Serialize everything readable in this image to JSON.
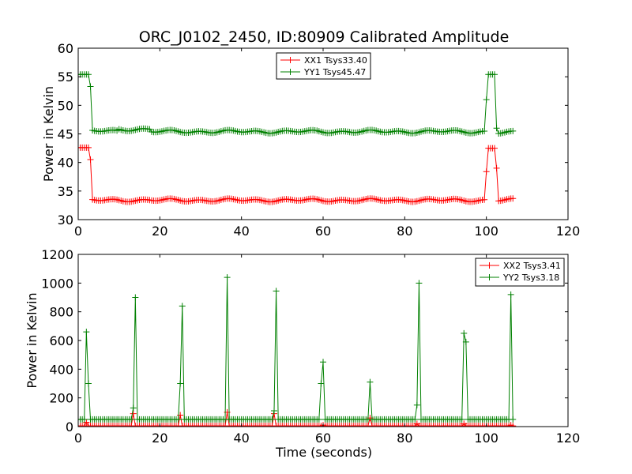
{
  "figure": {
    "title": "ORC_J0102_2450, ID:80909 Calibrated Amplitude",
    "xlabel": "Time (seconds)"
  },
  "colors": {
    "xx": "#ff0000",
    "yy": "#008000",
    "axes": "#000000"
  },
  "chart_data": [
    {
      "type": "line",
      "ylabel": "Power in Kelvin",
      "xlim": [
        0,
        120
      ],
      "ylim": [
        30,
        60
      ],
      "xticks": [
        0,
        20,
        40,
        60,
        80,
        100,
        120
      ],
      "yticks": [
        30,
        35,
        40,
        45,
        50,
        55,
        60
      ],
      "legend_position": "top-center",
      "x_step": 0.5,
      "series": [
        {
          "name": "XX1 Tsys33.40",
          "color": "#ff0000",
          "segments": [
            {
              "x0": 0,
              "x1": 2.5,
              "value": 42.6
            },
            {
              "x0": 3.0,
              "x1": 3.0,
              "value": 40.5
            },
            {
              "x0": 3.5,
              "x1": 99.5,
              "value": 33.4
            },
            {
              "x0": 100.0,
              "x1": 100.0,
              "value": 38.4
            },
            {
              "x0": 100.5,
              "x1": 102.0,
              "value": 42.5
            },
            {
              "x0": 102.5,
              "x1": 102.5,
              "value": 39.0
            },
            {
              "x0": 103.0,
              "x1": 106.5,
              "value": 33.4
            }
          ]
        },
        {
          "name": "YY1 Tsys45.47",
          "color": "#008000",
          "segments": [
            {
              "x0": 0,
              "x1": 2.5,
              "value": 55.4
            },
            {
              "x0": 3.0,
              "x1": 3.0,
              "value": 53.3
            },
            {
              "x0": 3.5,
              "x1": 9.5,
              "value": 45.5
            },
            {
              "x0": 10.0,
              "x1": 17.5,
              "value": 45.8
            },
            {
              "x0": 18.0,
              "x1": 99.5,
              "value": 45.4
            },
            {
              "x0": 100.0,
              "x1": 100.0,
              "value": 51.0
            },
            {
              "x0": 100.5,
              "x1": 102.0,
              "value": 55.4
            },
            {
              "x0": 102.5,
              "x1": 102.5,
              "value": 46.0
            },
            {
              "x0": 103.0,
              "x1": 106.5,
              "value": 45.2
            }
          ]
        }
      ]
    },
    {
      "type": "line",
      "ylabel": "Power in Kelvin",
      "xlabel": "Time (seconds)",
      "xlim": [
        0,
        120
      ],
      "ylim": [
        0,
        1200
      ],
      "xticks": [
        0,
        20,
        40,
        60,
        80,
        100,
        120
      ],
      "yticks": [
        0,
        200,
        400,
        600,
        800,
        1000,
        1200
      ],
      "legend_position": "top-right",
      "x_step": 0.5,
      "series": [
        {
          "name": "XX2 Tsys3.41",
          "color": "#ff0000",
          "baseline": 5,
          "spikes": [
            {
              "x": 2.0,
              "value": 30
            },
            {
              "x": 13.5,
              "value": 90
            },
            {
              "x": 25.0,
              "value": 80
            },
            {
              "x": 36.5,
              "value": 100
            },
            {
              "x": 48.0,
              "value": 90
            },
            {
              "x": 60.0,
              "value": 10
            },
            {
              "x": 71.5,
              "value": 60
            },
            {
              "x": 83.0,
              "value": 20
            },
            {
              "x": 94.5,
              "value": 20
            },
            {
              "x": 106.0,
              "value": 10
            }
          ]
        },
        {
          "name": "YY2 Tsys3.18",
          "color": "#008000",
          "baseline": 50,
          "spikes": [
            {
              "x": 2.0,
              "value": 660
            },
            {
              "x": 2.5,
              "value": 300
            },
            {
              "x": 13.5,
              "value": 130
            },
            {
              "x": 14.0,
              "value": 900
            },
            {
              "x": 25.0,
              "value": 300
            },
            {
              "x": 25.5,
              "value": 840
            },
            {
              "x": 36.5,
              "value": 1040
            },
            {
              "x": 48.0,
              "value": 110
            },
            {
              "x": 48.5,
              "value": 945
            },
            {
              "x": 59.5,
              "value": 300
            },
            {
              "x": 60.0,
              "value": 450
            },
            {
              "x": 71.5,
              "value": 310
            },
            {
              "x": 83.0,
              "value": 150
            },
            {
              "x": 83.5,
              "value": 1000
            },
            {
              "x": 94.5,
              "value": 650
            },
            {
              "x": 95.0,
              "value": 590
            },
            {
              "x": 106.0,
              "value": 920
            }
          ],
          "end_x": 106.5
        }
      ]
    }
  ]
}
